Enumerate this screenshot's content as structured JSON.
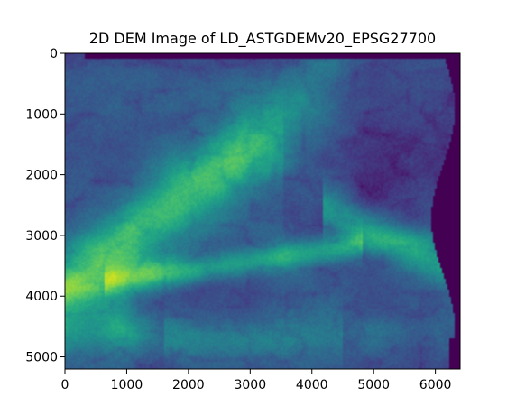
{
  "chart_data": {
    "type": "heatmap",
    "title": "2D DEM Image of LD_ASTGDEMv20_EPSG27700",
    "xlabel": "",
    "ylabel": "",
    "xlim": [
      0,
      6400
    ],
    "ylim": [
      5200,
      0
    ],
    "x_ticks": [
      0,
      1000,
      2000,
      3000,
      4000,
      5000,
      6000
    ],
    "y_ticks": [
      0,
      1000,
      2000,
      3000,
      4000,
      5000
    ],
    "colormap": "viridis",
    "grid": false,
    "colors": {
      "nodata": "#440154",
      "low": "#3b528b",
      "mid": "#21918c",
      "high": "#5ec962",
      "peak": "#fde725"
    }
  }
}
